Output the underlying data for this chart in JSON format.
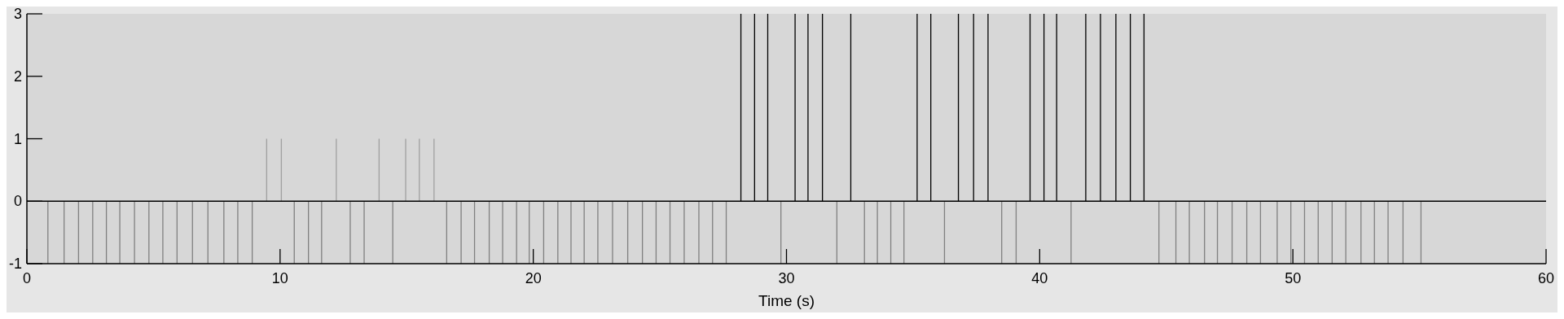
{
  "chart_data": {
    "type": "bar",
    "xlabel": "Time (s)",
    "xlim": [
      0,
      60
    ],
    "xticks": [
      0,
      10,
      20,
      30,
      40,
      50,
      60
    ],
    "ylim": [
      -1,
      3
    ],
    "yticks": [
      -1,
      0,
      1,
      2,
      3
    ],
    "grid": false,
    "ref_lines": [
      {
        "axis": "y",
        "value": 0,
        "color": "#000000"
      }
    ],
    "series": [
      {
        "color": "#808080",
        "x": [
          0.83,
          1.47,
          2.04,
          2.6,
          3.14,
          3.67,
          4.25,
          4.82,
          5.37,
          5.93,
          6.54,
          7.15,
          7.78,
          8.33,
          8.9,
          10.56,
          11.12,
          11.64,
          12.77,
          13.32,
          14.45,
          16.58,
          17.15,
          17.68,
          18.26,
          18.79,
          19.34,
          19.84,
          20.41,
          20.97,
          21.49,
          22.01,
          22.55,
          23.13,
          23.73,
          24.31,
          24.85,
          25.4,
          25.96,
          26.54,
          27.08,
          27.62,
          29.78,
          31.99,
          33.08,
          33.59,
          34.12,
          34.64,
          36.24,
          38.5,
          39.07,
          41.24,
          44.71,
          45.38,
          45.91,
          46.51,
          47.02,
          47.6,
          48.18,
          48.72,
          49.38,
          49.92,
          50.46,
          51.0,
          51.55,
          52.09,
          52.69,
          53.22,
          53.76,
          54.35,
          55.06
        ],
        "values": [
          -1,
          -1,
          -1,
          -1,
          -1,
          -1,
          -1,
          -1,
          -1,
          -1,
          -1,
          -1,
          -1,
          -1,
          -1,
          -1,
          -1,
          -1,
          -1,
          -1,
          -1,
          -1,
          -1,
          -1,
          -1,
          -1,
          -1,
          -1,
          -1,
          -1,
          -1,
          -1,
          -1,
          -1,
          -1,
          -1,
          -1,
          -1,
          -1,
          -1,
          -1,
          -1,
          -1,
          -1,
          -1,
          -1,
          -1,
          -1,
          -1,
          -1,
          -1,
          -1,
          -1,
          -1,
          -1,
          -1,
          -1,
          -1,
          -1,
          -1,
          -1,
          -1,
          -1,
          -1,
          -1,
          -1,
          -1,
          -1,
          -1,
          -1,
          -1
        ]
      },
      {
        "color": "#a0a0a0",
        "x": [
          9.47,
          10.05,
          12.22,
          13.91,
          14.96,
          15.5,
          16.08
        ],
        "values": [
          1,
          1,
          1,
          1,
          1,
          1,
          1
        ]
      },
      {
        "color": "#000000",
        "x": [
          28.2,
          28.74,
          29.26,
          30.34,
          30.85,
          31.42,
          32.54,
          35.16,
          35.7,
          36.79,
          37.39,
          37.96,
          39.62,
          40.17,
          40.67,
          41.82,
          42.4,
          43.01,
          43.58,
          44.12
        ],
        "values": [
          3,
          3,
          3,
          3,
          3,
          3,
          3,
          3,
          3,
          3,
          3,
          3,
          3,
          3,
          3,
          3,
          3,
          3,
          3,
          3
        ]
      }
    ]
  }
}
